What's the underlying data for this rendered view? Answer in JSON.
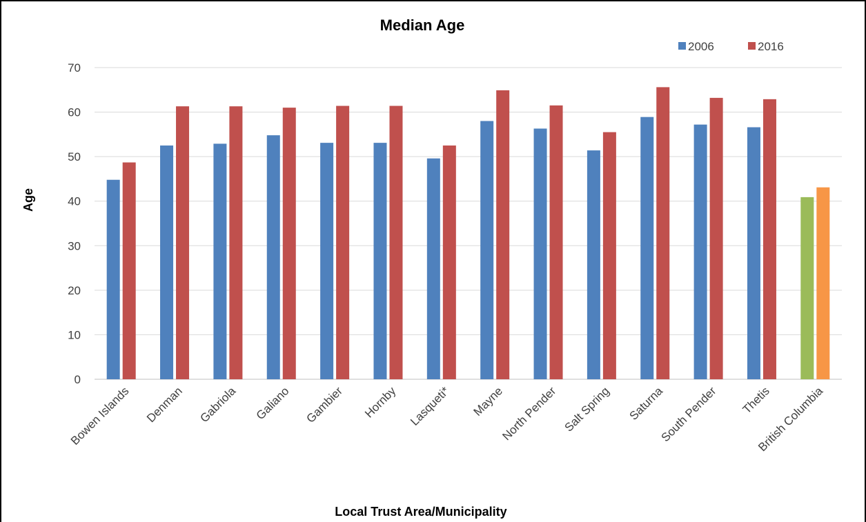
{
  "chart_data": {
    "type": "bar",
    "title": "Median Age",
    "xlabel": "Local Trust Area/Municipality",
    "ylabel": "Age",
    "ylim": [
      0,
      70
    ],
    "yticks": [
      0,
      10,
      20,
      30,
      40,
      50,
      60,
      70
    ],
    "grid": true,
    "legend_position": "top-right",
    "categories": [
      "Bowen Islands",
      "Denman",
      "Gabriola",
      "Galiano",
      "Gambier",
      "Hornby",
      "Lasqueti*",
      "Mayne",
      "North Pender",
      "Salt Spring",
      "Saturna",
      "South Pender",
      "Thetis",
      "British Columbia"
    ],
    "series": [
      {
        "name": "2006",
        "color": "#4f81bd",
        "values": [
          44.8,
          52.5,
          52.9,
          54.8,
          53.1,
          53.1,
          49.6,
          58.0,
          56.3,
          51.4,
          58.9,
          57.2,
          56.6,
          40.9
        ]
      },
      {
        "name": "2016",
        "color": "#c0504d",
        "values": [
          48.7,
          61.3,
          61.3,
          61.0,
          61.4,
          61.4,
          52.5,
          64.9,
          61.5,
          55.5,
          65.6,
          63.2,
          62.9,
          43.1
        ]
      }
    ],
    "highlight": {
      "category": "British Columbia",
      "colors": {
        "2006": "#9bbb59",
        "2016": "#f79646"
      }
    },
    "colors": {
      "gridline": "#d9d9d9",
      "axis": "#bfbfbf",
      "tick_text": "#404040",
      "border": "#000000"
    }
  }
}
